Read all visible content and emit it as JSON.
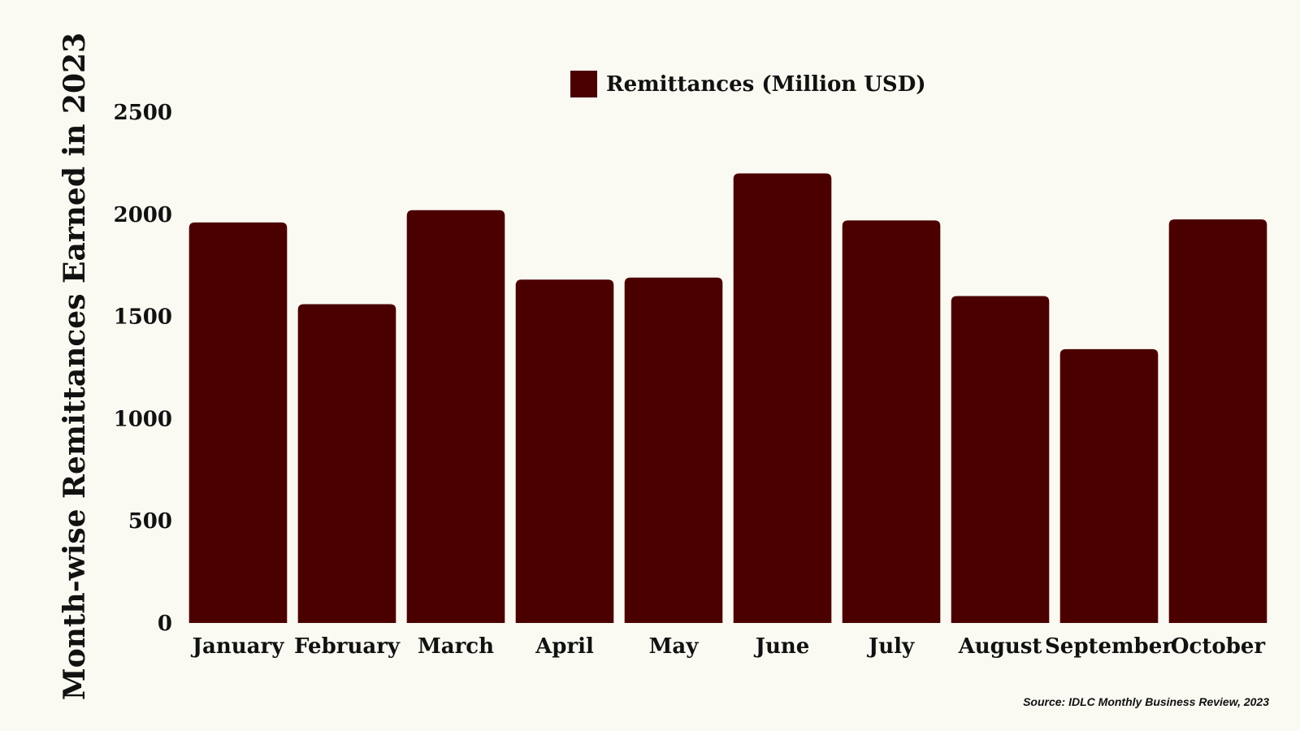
{
  "chart_data": {
    "type": "bar",
    "categories": [
      "January",
      "February",
      "March",
      "April",
      "May",
      "June",
      "July",
      "August",
      "September",
      "October"
    ],
    "series": [
      {
        "name": "Remittances (Million USD)",
        "values": [
          1960,
          1560,
          2020,
          1680,
          1690,
          2200,
          1970,
          1600,
          1340,
          1975
        ]
      }
    ],
    "title": "",
    "xlabel": "",
    "ylabel": "Month-wise Remittances Earned in 2023",
    "ylim": [
      0,
      2500
    ],
    "yticks": [
      0,
      500,
      1000,
      1500,
      2000,
      2500
    ],
    "grid": false,
    "legend_position": "top-center",
    "colors": {
      "bar": "#4B0000",
      "background": "#FAF9F2",
      "text": "#111111"
    }
  },
  "footer": {
    "source": "Source: IDLC Monthly Business Review, 2023"
  }
}
